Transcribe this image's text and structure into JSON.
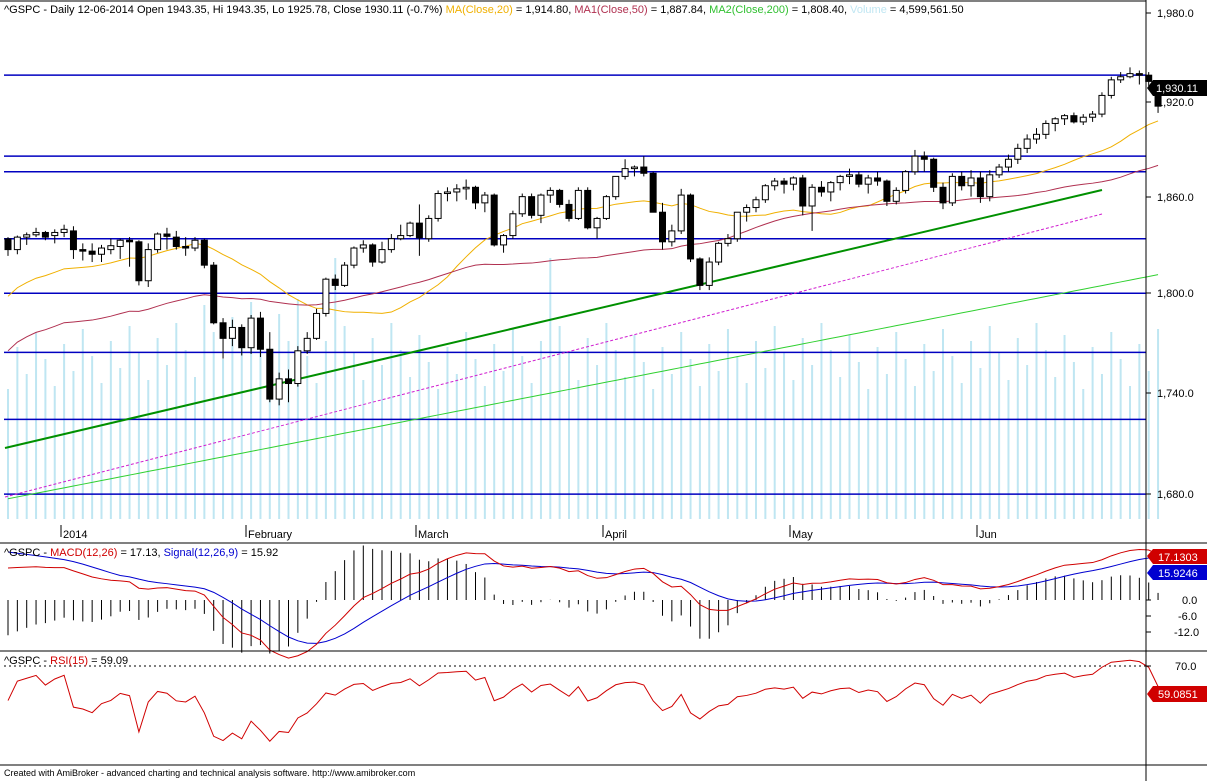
{
  "colors": {
    "ma20": "#f0b000",
    "ma50": "#b03050",
    "ma200": "#30d030",
    "volume": "#bfe6f2",
    "channel_line": "#0000c0",
    "trend_line": "#009000",
    "trend_dashed": "#d020d0",
    "macd_line": "#d00000",
    "signal_line": "#0000d0",
    "rsi_line": "#d00000",
    "price_badge": "#000000",
    "macd_badge": "#d00000",
    "signal_badge": "#0000d0",
    "rsi_badge": "#d00000"
  },
  "header": {
    "prefix": "^GSPC - Daily 12-06-2014 Open 1943.35, Hi 1943.35, Lo 1925.78, Close 1930.11 (-0.7%)",
    "ma20_label": "MA(Close,20)",
    "ma20_value": "= 1,914.80,",
    "ma50_label": "MA1(Close,50)",
    "ma50_value": "= 1,887.84,",
    "ma200_label": "MA2(Close,200)",
    "ma200_value": "= 1,808.40,",
    "volume_label": "Volume",
    "volume_value": "= 4,599,561.50"
  },
  "price_axis": {
    "ticks": [
      "1,980.0",
      "1,920.0",
      "1,860.0",
      "1,800.0",
      "1,740.0",
      "1,680.0"
    ],
    "last_price": "1,930.11"
  },
  "date_axis": {
    "labels": [
      "2014",
      "February",
      "March",
      "April",
      "May",
      "Jun"
    ]
  },
  "macd_panel": {
    "title_prefix": "^GSPC - ",
    "macd_label": "MACD(12,26)",
    "macd_value": "= 17.13,",
    "signal_label": "Signal(12,26,9)",
    "signal_value": "= 15.92",
    "ticks": [
      "0.0",
      "-6.0",
      "-12.0"
    ],
    "macd_badge": "17.1303",
    "signal_badge": "15.9246"
  },
  "rsi_panel": {
    "title_prefix": "^GSPC - ",
    "rsi_label": "RSI(15)",
    "rsi_value": "= 59.09",
    "ticks": [
      "70.0"
    ],
    "rsi_badge": "59.0851"
  },
  "footer": "Created with AmiBroker - advanced charting and technical analysis software. http://www.amibroker.com",
  "chart_data": {
    "type": "candlestick",
    "symbol": "^GSPC",
    "interval": "Daily",
    "price_range": [
      1665,
      1988
    ],
    "horizontal_levels": [
      1950,
      1898,
      1888,
      1845,
      1810,
      1772,
      1729,
      1681
    ],
    "month_start_bar": [
      1,
      22,
      41,
      62,
      83,
      104
    ],
    "ohlc": [
      [
        1844.87,
        1846.0,
        1834.0,
        1838.0
      ],
      [
        1838.0,
        1847.0,
        1835.0,
        1846.0
      ],
      [
        1846.0,
        1849.0,
        1841.0,
        1847.5
      ],
      [
        1847.5,
        1852.0,
        1846.0,
        1849.0
      ],
      [
        1849.0,
        1850.0,
        1844.0,
        1846.0
      ],
      [
        1847.0,
        1851.0,
        1842.0,
        1849.0
      ],
      [
        1849.0,
        1854.0,
        1846.0,
        1851.0
      ],
      [
        1850.0,
        1853.0,
        1832.0,
        1838.0
      ],
      [
        1838.0,
        1842.0,
        1831.0,
        1837.0
      ],
      [
        1837.0,
        1842.0,
        1830.0,
        1835.0
      ],
      [
        1835.0,
        1841.0,
        1830.0,
        1839.0
      ],
      [
        1838.0,
        1845.0,
        1835.0,
        1840.5
      ],
      [
        1840.0,
        1845.0,
        1832.0,
        1844.0
      ],
      [
        1844.0,
        1846.0,
        1827.0,
        1843.0
      ],
      [
        1843.0,
        1844.0,
        1815.0,
        1818.0
      ],
      [
        1818.0,
        1842.0,
        1814.0,
        1838.0
      ],
      [
        1838.0,
        1849.0,
        1836.0,
        1848.0
      ],
      [
        1848.0,
        1852.0,
        1838.0,
        1846.5
      ],
      [
        1846.0,
        1850.0,
        1838.0,
        1840.0
      ],
      [
        1840.0,
        1846.0,
        1834.0,
        1839.0
      ],
      [
        1839.0,
        1846.0,
        1837.0,
        1844.0
      ],
      [
        1844.0,
        1845.0,
        1826.0,
        1828.0
      ],
      [
        1828.0,
        1830.0,
        1790.0,
        1791.0
      ],
      [
        1791.0,
        1794.0,
        1768.0,
        1781.0
      ],
      [
        1781.0,
        1793.0,
        1776.0,
        1788.0
      ],
      [
        1788.0,
        1790.0,
        1770.0,
        1775.0
      ],
      [
        1775.0,
        1796.0,
        1771.0,
        1794.0
      ],
      [
        1794.0,
        1798.0,
        1769.0,
        1774.0
      ],
      [
        1774.0,
        1785.0,
        1740.0,
        1742.0
      ],
      [
        1742.0,
        1759.0,
        1738.0,
        1755.0
      ],
      [
        1755.0,
        1761.0,
        1740.0,
        1752.0
      ],
      [
        1752.0,
        1776.0,
        1750.0,
        1773.0
      ],
      [
        1773.0,
        1785.0,
        1771.0,
        1781.0
      ],
      [
        1781.0,
        1800.0,
        1780.0,
        1797.0
      ],
      [
        1797.0,
        1820.0,
        1795.0,
        1819.0
      ],
      [
        1819.0,
        1822.0,
        1812.0,
        1815.0
      ],
      [
        1815.0,
        1830.0,
        1814.0,
        1828.0
      ],
      [
        1828.0,
        1840.0,
        1826.0,
        1839.0
      ],
      [
        1839.0,
        1844.0,
        1836.0,
        1841.0
      ],
      [
        1841.0,
        1842.0,
        1827.0,
        1830.0
      ],
      [
        1830.0,
        1843.0,
        1829.0,
        1838.0
      ],
      [
        1838.0,
        1848.0,
        1836.0,
        1845.0
      ],
      [
        1845.0,
        1854.0,
        1844.0,
        1847.0
      ],
      [
        1847.0,
        1856.0,
        1846.0,
        1855.0
      ],
      [
        1855.0,
        1867.0,
        1834.0,
        1845.5
      ],
      [
        1845.0,
        1860.0,
        1843.0,
        1858.0
      ],
      [
        1858.0,
        1876.0,
        1856.0,
        1874.0
      ],
      [
        1874.0,
        1878.0,
        1869.0,
        1875.0
      ],
      [
        1875.0,
        1880.0,
        1869.0,
        1877.0
      ],
      [
        1877.0,
        1883.0,
        1870.0,
        1878.0
      ],
      [
        1878.0,
        1879.0,
        1864.0,
        1868.0
      ],
      [
        1868.0,
        1875.0,
        1862.0,
        1873.0
      ],
      [
        1873.0,
        1874.0,
        1840.0,
        1841.0
      ],
      [
        1841.0,
        1848.0,
        1836.0,
        1847.0
      ],
      [
        1847.0,
        1863.0,
        1845.0,
        1861.0
      ],
      [
        1861.0,
        1874.0,
        1859.0,
        1872.0
      ],
      [
        1872.0,
        1874.0,
        1858.0,
        1860.0
      ],
      [
        1860.0,
        1874.0,
        1855.0,
        1873.0
      ],
      [
        1873.0,
        1878.0,
        1868.0,
        1876.0
      ],
      [
        1876.0,
        1877.0,
        1865.0,
        1867.0
      ],
      [
        1867.0,
        1870.0,
        1856.0,
        1858.0
      ],
      [
        1858.0,
        1878.0,
        1857.0,
        1876.0
      ],
      [
        1876.0,
        1878.0,
        1851.0,
        1852.0
      ],
      [
        1852.0,
        1859.0,
        1845.0,
        1858.0
      ],
      [
        1858.0,
        1873.0,
        1857.0,
        1872.0
      ],
      [
        1872.0,
        1885.0,
        1870.0,
        1885.0
      ],
      [
        1885.0,
        1896.0,
        1883.0,
        1890.0
      ],
      [
        1890.0,
        1892.0,
        1885.0,
        1891.0
      ],
      [
        1891.0,
        1898.0,
        1885.0,
        1887.0
      ],
      [
        1887.0,
        1888.0,
        1862.0,
        1862.0
      ],
      [
        1862.0,
        1868.0,
        1838.0,
        1843.0
      ],
      [
        1843.0,
        1854.0,
        1840.0,
        1850.0
      ],
      [
        1850.0,
        1877.0,
        1848.0,
        1873.0
      ],
      [
        1873.0,
        1874.0,
        1830.0,
        1832.0
      ],
      [
        1832.0,
        1833.0,
        1812.0,
        1815.0
      ],
      [
        1815.0,
        1833.0,
        1812.0,
        1830.0
      ],
      [
        1830.0,
        1843.0,
        1828.0,
        1842.0
      ],
      [
        1842.0,
        1848.0,
        1840.0,
        1845.0
      ],
      [
        1845.0,
        1862.0,
        1843.0,
        1862.0
      ],
      [
        1862.0,
        1867.0,
        1856.0,
        1865.0
      ],
      [
        1865.0,
        1872.0,
        1862.0,
        1870.0
      ],
      [
        1870.0,
        1880.0,
        1868.0,
        1879.0
      ],
      [
        1879.0,
        1884.0,
        1876.0,
        1882.0
      ],
      [
        1882.0,
        1884.0,
        1874.0,
        1880.0
      ],
      [
        1880.0,
        1885.0,
        1876.0,
        1884.0
      ],
      [
        1884.0,
        1886.0,
        1860.0,
        1866.0
      ],
      [
        1866.0,
        1880.0,
        1850.0,
        1878.0
      ],
      [
        1878.0,
        1882.0,
        1872.0,
        1875.0
      ],
      [
        1875.0,
        1882.0,
        1869.0,
        1881.0
      ],
      [
        1881.0,
        1886.0,
        1876.0,
        1885.0
      ],
      [
        1885.0,
        1890.0,
        1880.0,
        1886.0
      ],
      [
        1886.0,
        1888.0,
        1878.0,
        1880.0
      ],
      [
        1880.0,
        1886.0,
        1874.0,
        1884.0
      ],
      [
        1884.0,
        1888.0,
        1879.0,
        1882.0
      ],
      [
        1882.0,
        1883.0,
        1866.0,
        1869.0
      ],
      [
        1869.0,
        1878.0,
        1867.0,
        1876.0
      ],
      [
        1876.0,
        1889.0,
        1874.0,
        1888.0
      ],
      [
        1888.0,
        1902.0,
        1886.0,
        1898.0
      ],
      [
        1898.0,
        1901.0,
        1888.0,
        1896.0
      ],
      [
        1896.0,
        1897.0,
        1875.0,
        1878.0
      ],
      [
        1878.0,
        1881.0,
        1864.0,
        1868.0
      ],
      [
        1868.0,
        1887.0,
        1866.0,
        1885.0
      ],
      [
        1885.0,
        1888.0,
        1876.0,
        1879.0
      ],
      [
        1879.0,
        1889.0,
        1872.0,
        1884.0
      ],
      [
        1884.0,
        1888.0,
        1868.0,
        1872.0
      ],
      [
        1872.0,
        1889.0,
        1869.0,
        1886.0
      ],
      [
        1886.0,
        1893.0,
        1884.0,
        1891.0
      ],
      [
        1891.0,
        1899.0,
        1888.0,
        1896.0
      ],
      [
        1896.0,
        1906.0,
        1893.0,
        1903.0
      ],
      [
        1903.0,
        1912.0,
        1900.0,
        1909.0
      ],
      [
        1909.0,
        1916.0,
        1906.0,
        1912.0
      ],
      [
        1912.0,
        1921.0,
        1909.0,
        1919.0
      ],
      [
        1919.0,
        1923.0,
        1914.0,
        1922.0
      ],
      [
        1922.0,
        1925.0,
        1918.0,
        1924.0
      ],
      [
        1924.0,
        1926.0,
        1919.0,
        1920.0
      ],
      [
        1920.0,
        1925.0,
        1918.0,
        1923.0
      ],
      [
        1923.0,
        1927.0,
        1920.0,
        1925.0
      ],
      [
        1925.0,
        1939.0,
        1923.0,
        1937.0
      ],
      [
        1937.0,
        1949.0,
        1935.0,
        1947.0
      ],
      [
        1947.0,
        1952.0,
        1945.0,
        1949.0
      ],
      [
        1949.0,
        1955.0,
        1948.0,
        1951.0
      ],
      [
        1951.0,
        1953.0,
        1944.0,
        1950.0
      ],
      [
        1950.0,
        1952.0,
        1943.0,
        1946.0
      ],
      [
        1943.35,
        1943.35,
        1925.78,
        1930.11
      ]
    ],
    "ma20_last": 1914.8,
    "ma50_last": 1887.84,
    "ma200_last": 1808.4,
    "volume_last": 4599561.5,
    "macd_last": 17.13,
    "signal_last": 15.92,
    "rsi_last": 59.09,
    "macd_range": [
      -20,
      20
    ],
    "rsi_range": [
      15,
      85
    ]
  }
}
